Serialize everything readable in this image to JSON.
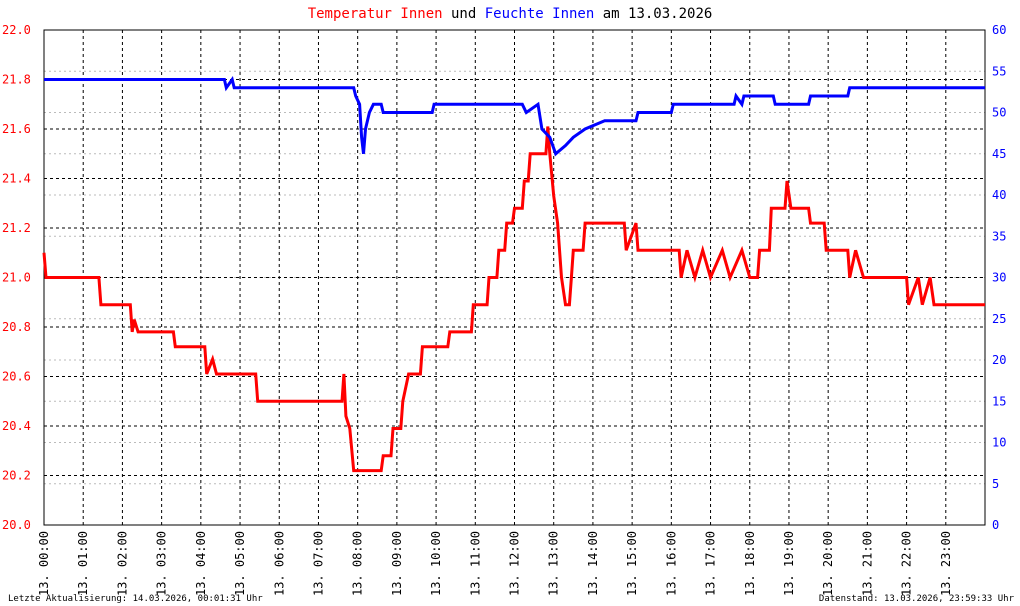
{
  "chart_data": {
    "type": "line",
    "title_parts": [
      "und",
      "am 13.03.2026"
    ],
    "footer_left": "Letzte Aktualisierung: 14.03.2026, 00:01:31 Uhr",
    "footer_right": "Datenstand: 13.03.2026, 23:59:33 Uhr",
    "grid": true,
    "xlim": [
      0,
      24
    ],
    "xticks": [
      {
        "value": 0,
        "label": "13. 00:00"
      },
      {
        "value": 1,
        "label": "13. 01:00"
      },
      {
        "value": 2,
        "label": "13. 02:00"
      },
      {
        "value": 3,
        "label": "13. 03:00"
      },
      {
        "value": 4,
        "label": "13. 04:00"
      },
      {
        "value": 5,
        "label": "13. 05:00"
      },
      {
        "value": 6,
        "label": "13. 06:00"
      },
      {
        "value": 7,
        "label": "13. 07:00"
      },
      {
        "value": 8,
        "label": "13. 08:00"
      },
      {
        "value": 9,
        "label": "13. 09:00"
      },
      {
        "value": 10,
        "label": "13. 10:00"
      },
      {
        "value": 11,
        "label": "13. 11:00"
      },
      {
        "value": 12,
        "label": "13. 12:00"
      },
      {
        "value": 13,
        "label": "13. 13:00"
      },
      {
        "value": 14,
        "label": "13. 14:00"
      },
      {
        "value": 15,
        "label": "13. 15:00"
      },
      {
        "value": 16,
        "label": "13. 16:00"
      },
      {
        "value": 17,
        "label": "13. 17:00"
      },
      {
        "value": 18,
        "label": "13. 18:00"
      },
      {
        "value": 19,
        "label": "13. 19:00"
      },
      {
        "value": 20,
        "label": "13. 20:00"
      },
      {
        "value": 21,
        "label": "13. 21:00"
      },
      {
        "value": 22,
        "label": "13. 22:00"
      },
      {
        "value": 23,
        "label": "13. 23:00"
      }
    ],
    "ylim": [
      20,
      22
    ],
    "yticks": [
      {
        "value": 20,
        "label": "20.0"
      },
      {
        "value": 20.2,
        "label": "20.2"
      },
      {
        "value": 20.4,
        "label": "20.4"
      },
      {
        "value": 20.6,
        "label": "20.6"
      },
      {
        "value": 20.8,
        "label": "20.8"
      },
      {
        "value": 21,
        "label": "21.0"
      },
      {
        "value": 21.2,
        "label": "21.2"
      },
      {
        "value": 21.4,
        "label": "21.4"
      },
      {
        "value": 21.6,
        "label": "21.6"
      },
      {
        "value": 21.8,
        "label": "21.8"
      },
      {
        "value": 22,
        "label": "22.0"
      }
    ],
    "y2lim": [
      0,
      60
    ],
    "y2ticks": [
      0,
      5,
      10,
      15,
      20,
      25,
      30,
      35,
      40,
      45,
      50,
      55,
      60
    ],
    "series": [
      {
        "name": "Temperatur Innen",
        "color": "#ff0000",
        "x": [
          0,
          0.05,
          1.4,
          1.45,
          2.2,
          2.25,
          2.3,
          2.4,
          3.3,
          3.35,
          4.1,
          4.15,
          4.3,
          4.4,
          5.4,
          5.45,
          7.6,
          7.65,
          7.7,
          7.8,
          7.9,
          8.6,
          8.65,
          8.85,
          8.9,
          9.1,
          9.15,
          9.3,
          9.6,
          9.65,
          10.3,
          10.35,
          10.9,
          10.95,
          11.3,
          11.35,
          11.55,
          11.6,
          11.75,
          11.8,
          11.95,
          12.0,
          12.2,
          12.25,
          12.35,
          12.4,
          12.8,
          12.85,
          12.9,
          13.0,
          13.1,
          13.2,
          13.3,
          13.4,
          13.45,
          13.5,
          13.75,
          13.8,
          14.8,
          14.85,
          15.1,
          15.15,
          16.2,
          16.25,
          16.4,
          16.6,
          16.8,
          17.0,
          17.3,
          17.5,
          17.8,
          18.0,
          18.2,
          18.25,
          18.5,
          18.55,
          18.9,
          18.95,
          19.05,
          19.5,
          19.55,
          19.9,
          19.95,
          20.5,
          20.55,
          20.7,
          20.9,
          22.0,
          22.05,
          22.3,
          22.4,
          22.6,
          22.7,
          24
        ],
        "values": [
          21.1,
          21.0,
          21.0,
          20.89,
          20.89,
          20.78,
          20.83,
          20.78,
          20.78,
          20.72,
          20.72,
          20.61,
          20.67,
          20.61,
          20.61,
          20.5,
          20.5,
          20.61,
          20.44,
          20.39,
          20.22,
          20.22,
          20.28,
          20.28,
          20.39,
          20.39,
          20.5,
          20.61,
          20.61,
          20.72,
          20.72,
          20.78,
          20.78,
          20.89,
          20.89,
          21.0,
          21.0,
          21.11,
          21.11,
          21.22,
          21.22,
          21.28,
          21.28,
          21.39,
          21.39,
          21.5,
          21.5,
          21.61,
          21.5,
          21.33,
          21.22,
          21.0,
          20.89,
          20.89,
          21.0,
          21.11,
          21.11,
          21.22,
          21.22,
          21.11,
          21.22,
          21.11,
          21.11,
          21.0,
          21.11,
          21.0,
          21.11,
          21.0,
          21.11,
          21.0,
          21.11,
          21.0,
          21.0,
          21.11,
          21.11,
          21.28,
          21.28,
          21.39,
          21.28,
          21.28,
          21.22,
          21.22,
          21.11,
          21.11,
          21.0,
          21.11,
          21.0,
          21.0,
          20.89,
          21.0,
          20.89,
          21.0,
          20.89,
          20.89
        ]
      },
      {
        "name": "Feuchte Innen",
        "color": "#0000ff",
        "axis": "y2",
        "x": [
          0,
          4.6,
          4.65,
          4.8,
          4.85,
          7.9,
          7.95,
          8.05,
          8.1,
          8.15,
          8.2,
          8.3,
          8.4,
          8.6,
          8.65,
          9.9,
          9.95,
          12.2,
          12.3,
          12.6,
          12.7,
          12.9,
          13.05,
          13.3,
          13.5,
          13.8,
          14.3,
          15.1,
          15.15,
          16.0,
          16.05,
          17.6,
          17.65,
          17.8,
          17.85,
          18.6,
          18.65,
          19.5,
          19.55,
          20.5,
          20.55,
          24
        ],
        "values": [
          54,
          54,
          53,
          54,
          53,
          53,
          52,
          51,
          47,
          45,
          48,
          50,
          51,
          51,
          50,
          50,
          51,
          51,
          50,
          51,
          48,
          47,
          45,
          46,
          47,
          48,
          49,
          49,
          50,
          50,
          51,
          51,
          52,
          51,
          52,
          52,
          51,
          51,
          52,
          52,
          53,
          53
        ]
      }
    ]
  }
}
